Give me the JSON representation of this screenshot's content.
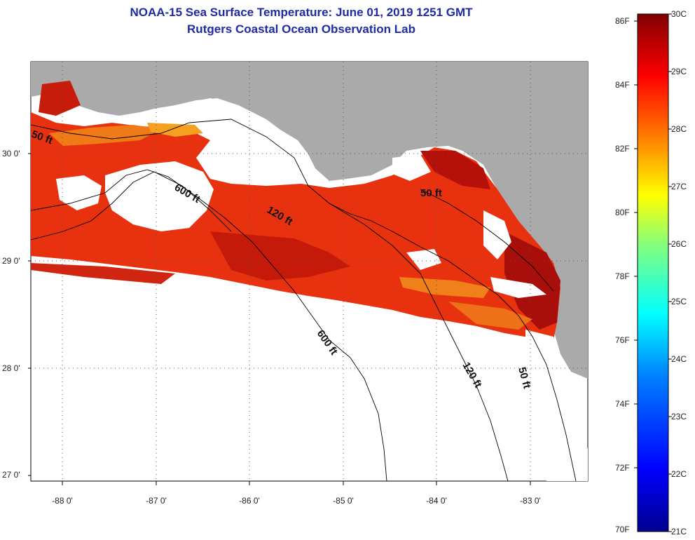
{
  "title_line1": "NOAA-15 Sea Surface Temperature:  June 01, 2019 1251 GMT",
  "title_line2": "Rutgers Coastal Ocean Observation Lab",
  "map": {
    "lat_labels": [
      "30 0'",
      "29 0'",
      "28 0'",
      "27 0'"
    ],
    "lon_labels": [
      "-88 0'",
      "-87 0'",
      "-86 0'",
      "-85 0'",
      "-84 0'",
      "-83 0'"
    ],
    "contour_labels": [
      "50 ft",
      "600 ft",
      "120 ft",
      "50 ft",
      "600 ft",
      "120 ft",
      "50 ft"
    ],
    "colors": {
      "land": "#aaaaaa",
      "background": "#ffffff",
      "grid": "#555555"
    }
  },
  "colorbar": {
    "fahrenheit": [
      "86F",
      "84F",
      "82F",
      "80F",
      "78F",
      "76F",
      "74F",
      "72F",
      "70F"
    ],
    "celsius": [
      "30C",
      "29C",
      "28C",
      "27C",
      "26C",
      "25C",
      "24C",
      "23C",
      "22C",
      "21C"
    ],
    "colors": [
      "#800000",
      "#ff0000",
      "#ff8000",
      "#ffff00",
      "#80ff80",
      "#00ffff",
      "#0080ff",
      "#0000ff",
      "#00008f"
    ]
  }
}
